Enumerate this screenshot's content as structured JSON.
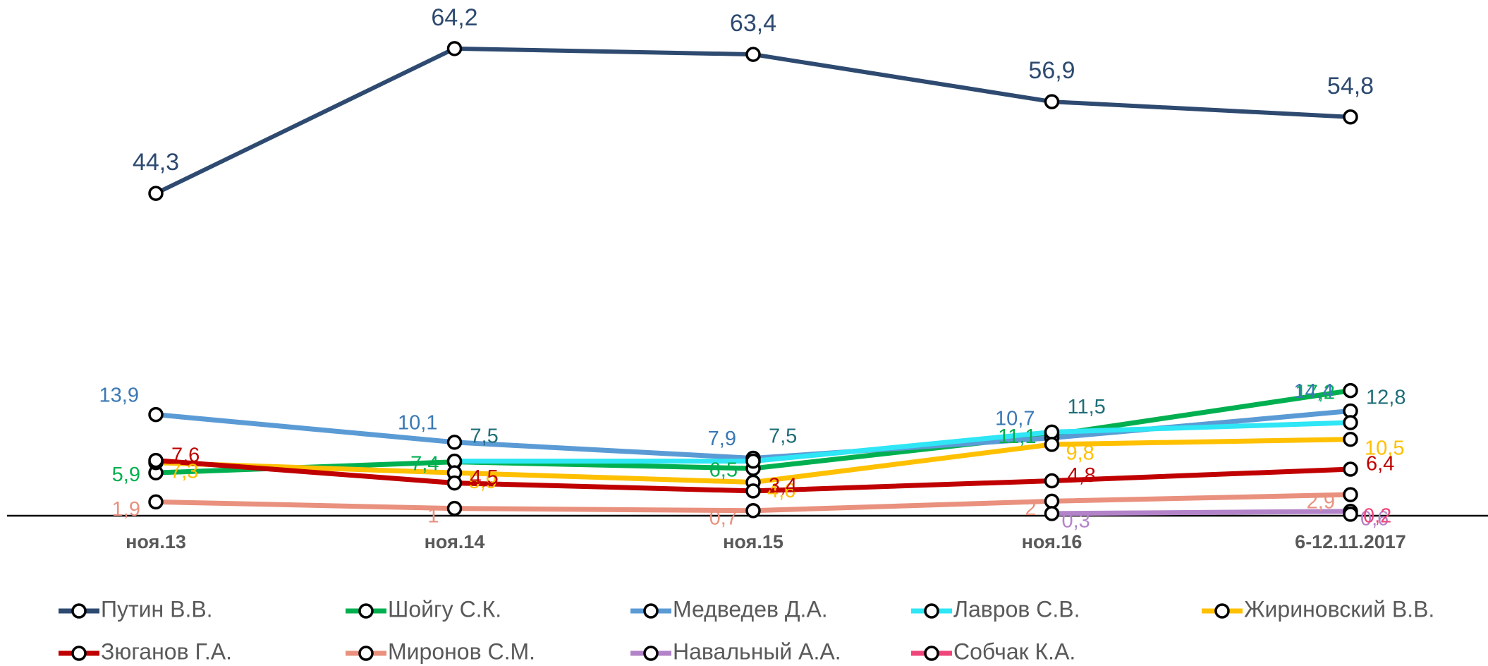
{
  "chart_data": {
    "type": "line",
    "categories": [
      "ноя.13",
      "ноя.14",
      "ноя.15",
      "ноя.16",
      "6-12.11.2017"
    ],
    "ylim": [
      0,
      70
    ],
    "series": [
      {
        "name": "Путин В.В.",
        "color": "#2e4a70",
        "label_color": "#2e4a70",
        "values": [
          44.3,
          64.2,
          63.4,
          56.9,
          54.8
        ],
        "value_labels": [
          "44,3",
          "64,2",
          "63,4",
          "56,9",
          "54,8"
        ]
      },
      {
        "name": "Шойгу С.К.",
        "color": "#00b050",
        "label_color": "#00b050",
        "values": [
          5.9,
          7.4,
          6.5,
          11.1,
          17.2
        ],
        "value_labels": [
          "5,9",
          "7,4",
          "6,5",
          "11,1",
          "17,2"
        ]
      },
      {
        "name": "Медведев Д.А.",
        "color": "#5b9bd5",
        "label_color": "#3a78b5",
        "values": [
          13.9,
          10.1,
          7.9,
          10.7,
          14.4
        ],
        "value_labels": [
          "13,9",
          "10,1",
          "7,9",
          "10,7",
          "14,4"
        ]
      },
      {
        "name": "Лавров С.В.",
        "color": "#2ee6f5",
        "label_color": "#1f6e78",
        "values": [
          null,
          7.5,
          7.5,
          11.5,
          12.8
        ],
        "value_labels": [
          null,
          "7,5",
          "7,5",
          "11,5",
          "12,8"
        ]
      },
      {
        "name": "Жириновский В.В.",
        "color": "#ffc000",
        "label_color": "#ffc000",
        "values": [
          7.3,
          5.9,
          4.6,
          9.8,
          10.5
        ],
        "value_labels": [
          "7,3",
          "5,9",
          "4,6",
          "9,8",
          "10,5"
        ]
      },
      {
        "name": "Зюганов Г.А.",
        "color": "#c00000",
        "label_color": "#c00000",
        "values": [
          7.6,
          4.5,
          3.4,
          4.8,
          6.4
        ],
        "value_labels": [
          "7,6",
          "4,5",
          "3,4",
          "4,8",
          "6,4"
        ]
      },
      {
        "name": "Миронов С.М.",
        "color": "#e9917e",
        "label_color": "#e9917e",
        "values": [
          1.9,
          1,
          0.7,
          2,
          2.9
        ],
        "value_labels": [
          "1,9",
          "1",
          "0,7",
          "2",
          "2,9"
        ]
      },
      {
        "name": "Навальный А.А.",
        "color": "#b383c9",
        "label_color": "#b383c9",
        "values": [
          null,
          null,
          null,
          0.3,
          0.6
        ],
        "value_labels": [
          null,
          null,
          null,
          "0,3",
          "0,6"
        ]
      },
      {
        "name": "Собчак К.А.",
        "color": "#f0457a",
        "label_color": "#f0457a",
        "values": [
          null,
          null,
          null,
          null,
          0.2
        ],
        "value_labels": [
          null,
          null,
          null,
          null,
          "0,2"
        ]
      }
    ]
  }
}
